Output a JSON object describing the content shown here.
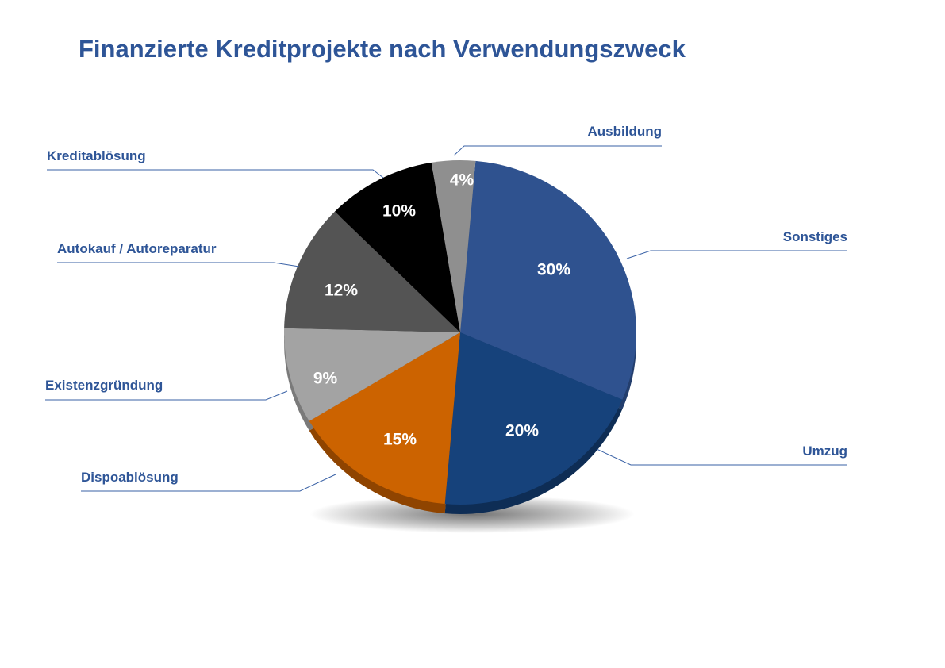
{
  "chart_data": {
    "type": "pie",
    "title": "Finanzierte Kreditprojekte nach Verwendungszweck",
    "slices": [
      {
        "label": "Sonstiges",
        "value": 30,
        "value_label": "30%",
        "color": "#2f528f",
        "side_color": "#233e6d"
      },
      {
        "label": "Umzug",
        "value": 20,
        "value_label": "20%",
        "color": "#16427b",
        "side_color": "#0e2d55"
      },
      {
        "label": "Dispoablösung",
        "value": 15,
        "value_label": "15%",
        "color": "#cc6300",
        "side_color": "#8f4400"
      },
      {
        "label": "Existenzgründung",
        "value": 9,
        "value_label": "9%",
        "color": "#a3a3a3",
        "side_color": "#7a7a7a"
      },
      {
        "label": "Autokauf / Autoreparatur",
        "value": 12,
        "value_label": "12%",
        "color": "#545454",
        "side_color": "#3a3a3a"
      },
      {
        "label": "Kreditablösung",
        "value": 10,
        "value_label": "10%",
        "color": "#000000",
        "side_color": "#111111"
      },
      {
        "label": "Ausbildung",
        "value": 4,
        "value_label": "4%",
        "color": "#8f8f8f",
        "side_color": "#666666"
      }
    ],
    "legend": "callouts",
    "label_color": "#2e5597",
    "value_label_color": "#ffffff"
  }
}
